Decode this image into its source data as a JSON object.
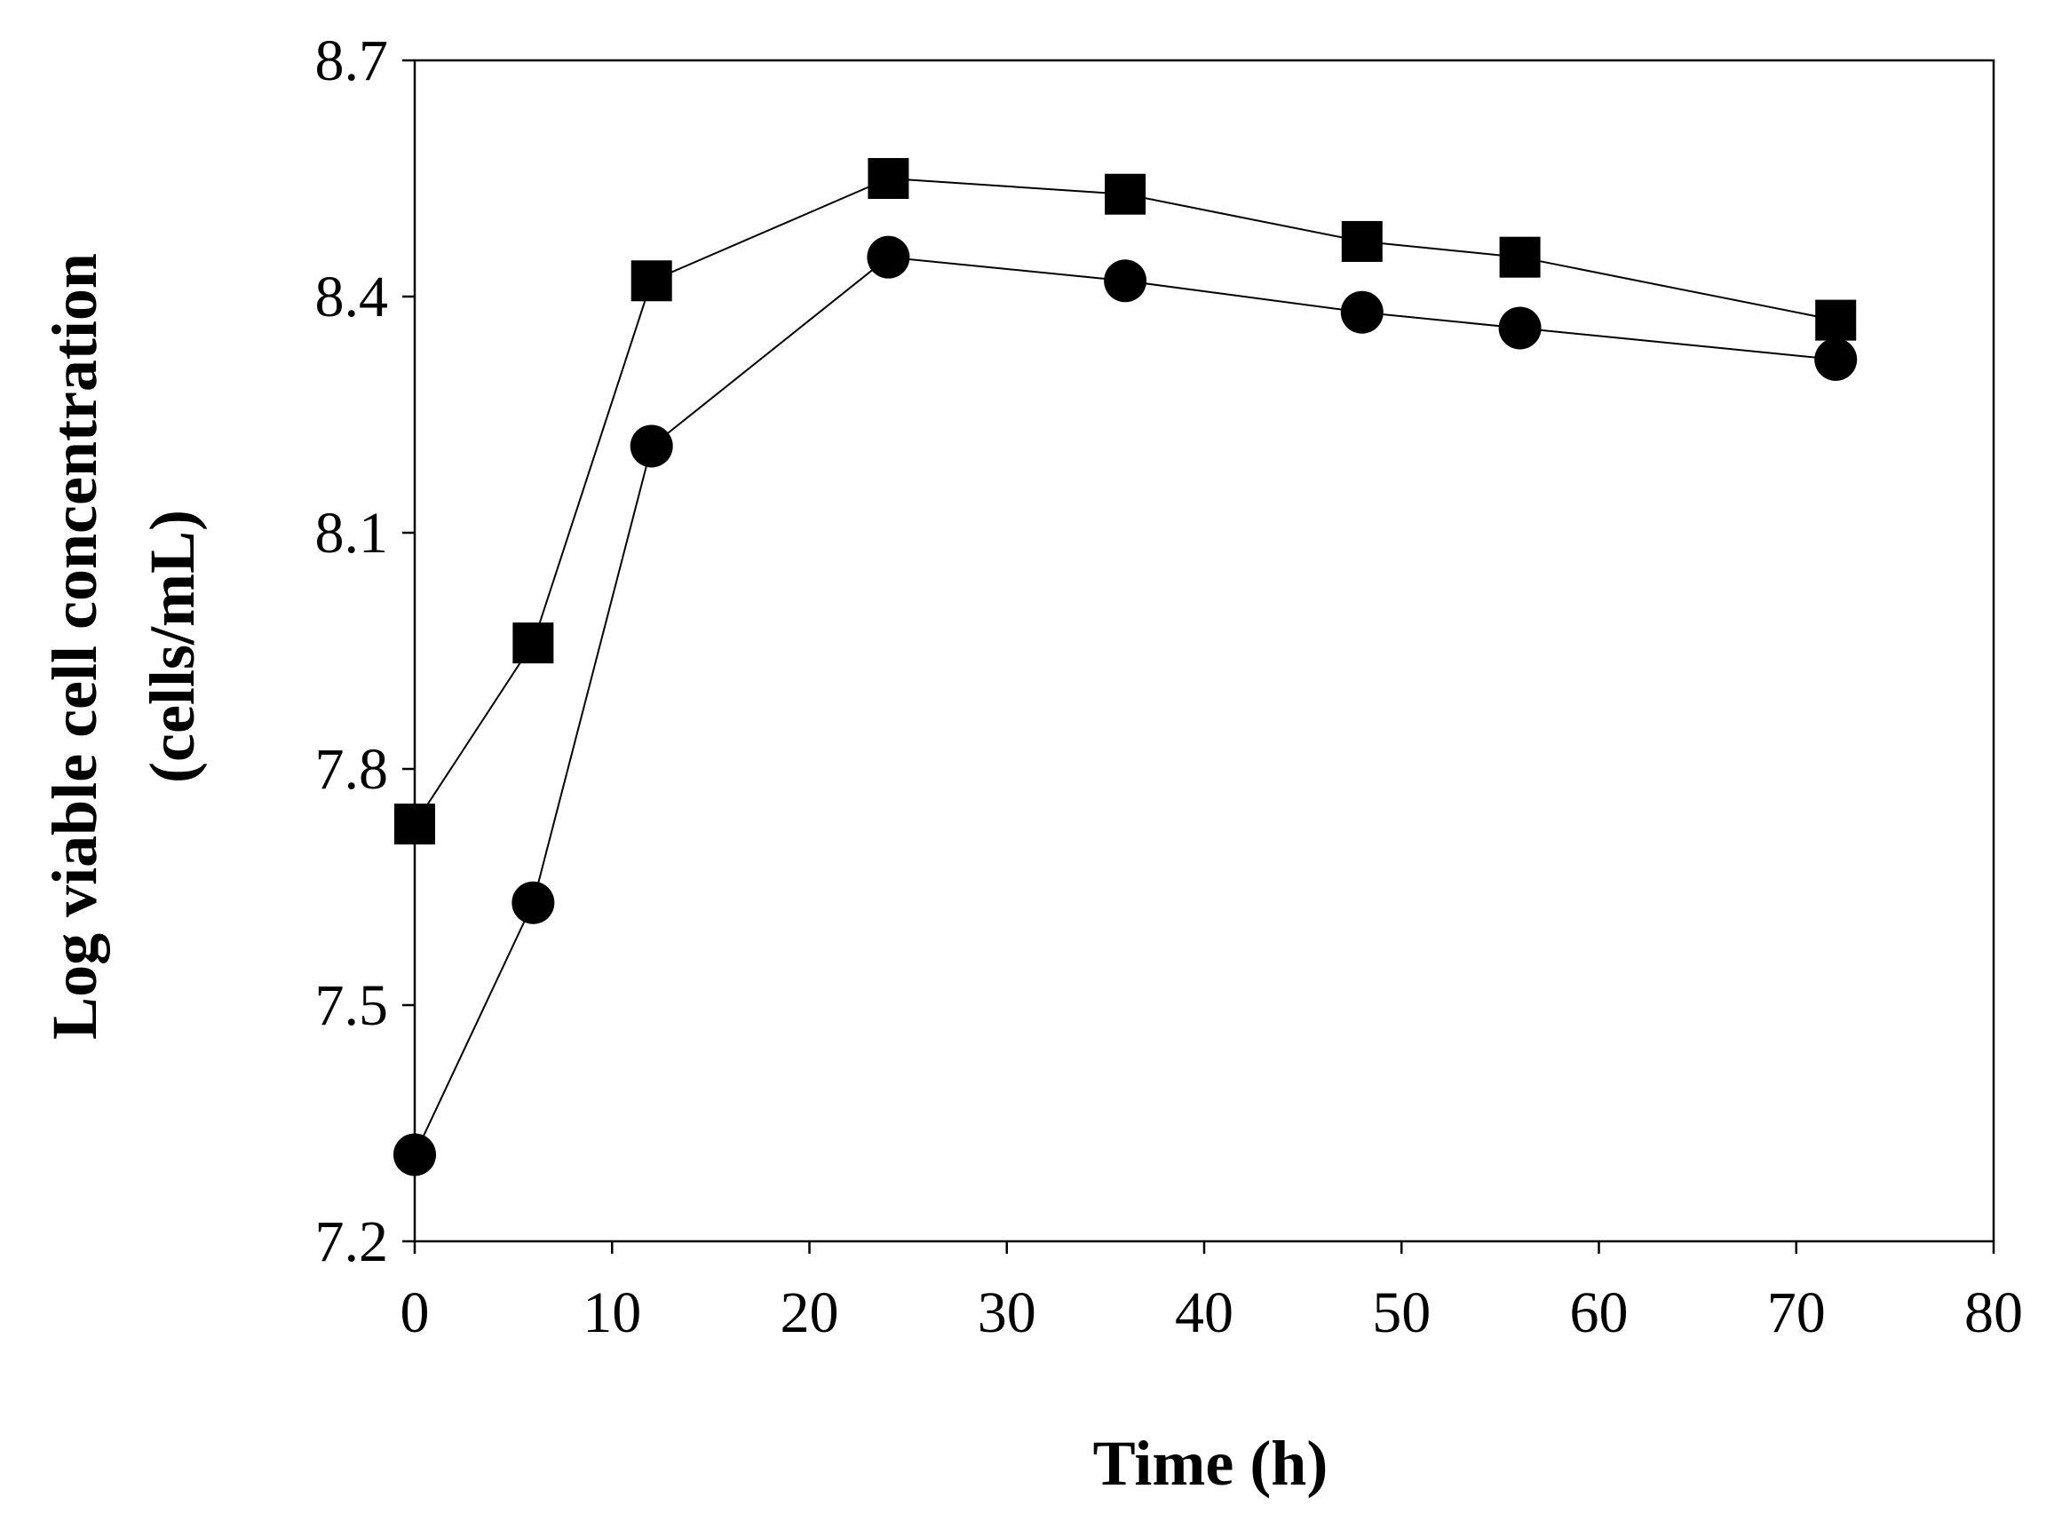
{
  "chart_data": {
    "type": "line",
    "title": "",
    "xlabel": "Time (h)",
    "ylabel_lines": [
      "Log viable cell concentration",
      "(cells/mL)"
    ],
    "xlim": [
      0,
      80
    ],
    "ylim": [
      7.2,
      8.7
    ],
    "xticks": [
      0,
      10,
      20,
      30,
      40,
      50,
      60,
      70,
      80
    ],
    "yticks": [
      "7.2",
      "7.5",
      "7.8",
      "8.1",
      "8.4",
      "8.7"
    ],
    "grid": false,
    "legend": "none",
    "x": [
      0,
      6,
      12,
      24,
      36,
      48,
      56,
      72
    ],
    "series": [
      {
        "name": "squares",
        "marker": "square",
        "color": "#000000",
        "values": [
          7.73,
          7.96,
          8.42,
          8.55,
          8.53,
          8.47,
          8.45,
          8.37
        ]
      },
      {
        "name": "circles",
        "marker": "circle",
        "color": "#000000",
        "values": [
          7.31,
          7.63,
          8.21,
          8.45,
          8.42,
          8.38,
          8.36,
          8.32
        ]
      }
    ]
  }
}
